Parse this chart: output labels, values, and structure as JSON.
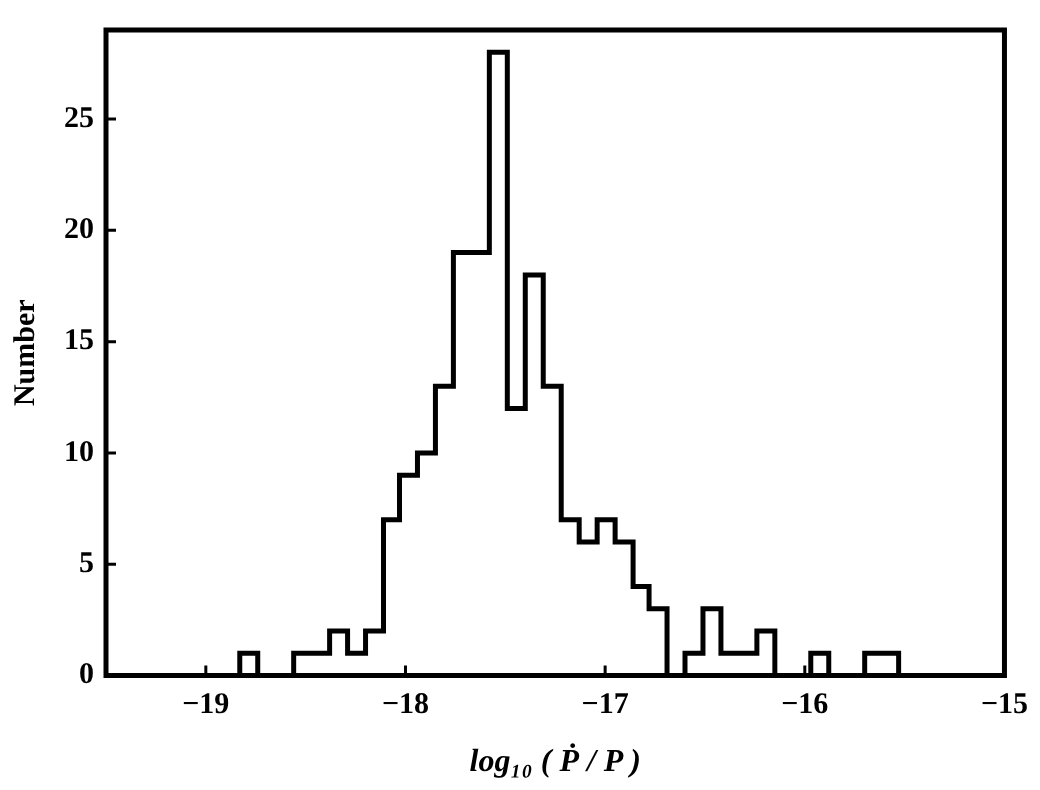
{
  "chart_data": {
    "type": "histogram",
    "xlabel": "log₁₀ ( Ṗ / P )",
    "ylabel": "Number",
    "bins": [
      -18.83,
      -18.74,
      -18.65,
      -18.56,
      -18.47,
      -18.38,
      -18.29,
      -18.2,
      -18.11,
      -18.03,
      -17.94,
      -17.85,
      -17.76,
      -17.67,
      -17.58,
      -17.49,
      -17.4,
      -17.31,
      -17.22,
      -17.13,
      -17.04,
      -16.95,
      -16.86,
      -16.78,
      -16.69,
      -16.6,
      -16.51,
      -16.42,
      -16.33,
      -16.24,
      -16.15,
      -16.06,
      -15.97,
      -15.88,
      -15.79,
      -15.7,
      -15.61,
      -15.53
    ],
    "values": [
      1,
      0,
      0,
      1,
      1,
      2,
      1,
      2,
      7,
      9,
      10,
      13,
      19,
      19,
      28,
      12,
      18,
      13,
      7,
      6,
      7,
      6,
      4,
      3,
      0,
      1,
      3,
      1,
      1,
      2,
      0,
      0,
      1,
      0,
      0,
      1,
      1
    ],
    "color": "#000000",
    "xlim": [
      -19.5,
      -15
    ],
    "xticks": [
      -19,
      -18,
      -17,
      -16,
      -15
    ],
    "ylim": [
      0,
      29
    ],
    "yticks": [
      0,
      5,
      10,
      15,
      20,
      25
    ],
    "grid": false,
    "legend": false
  }
}
